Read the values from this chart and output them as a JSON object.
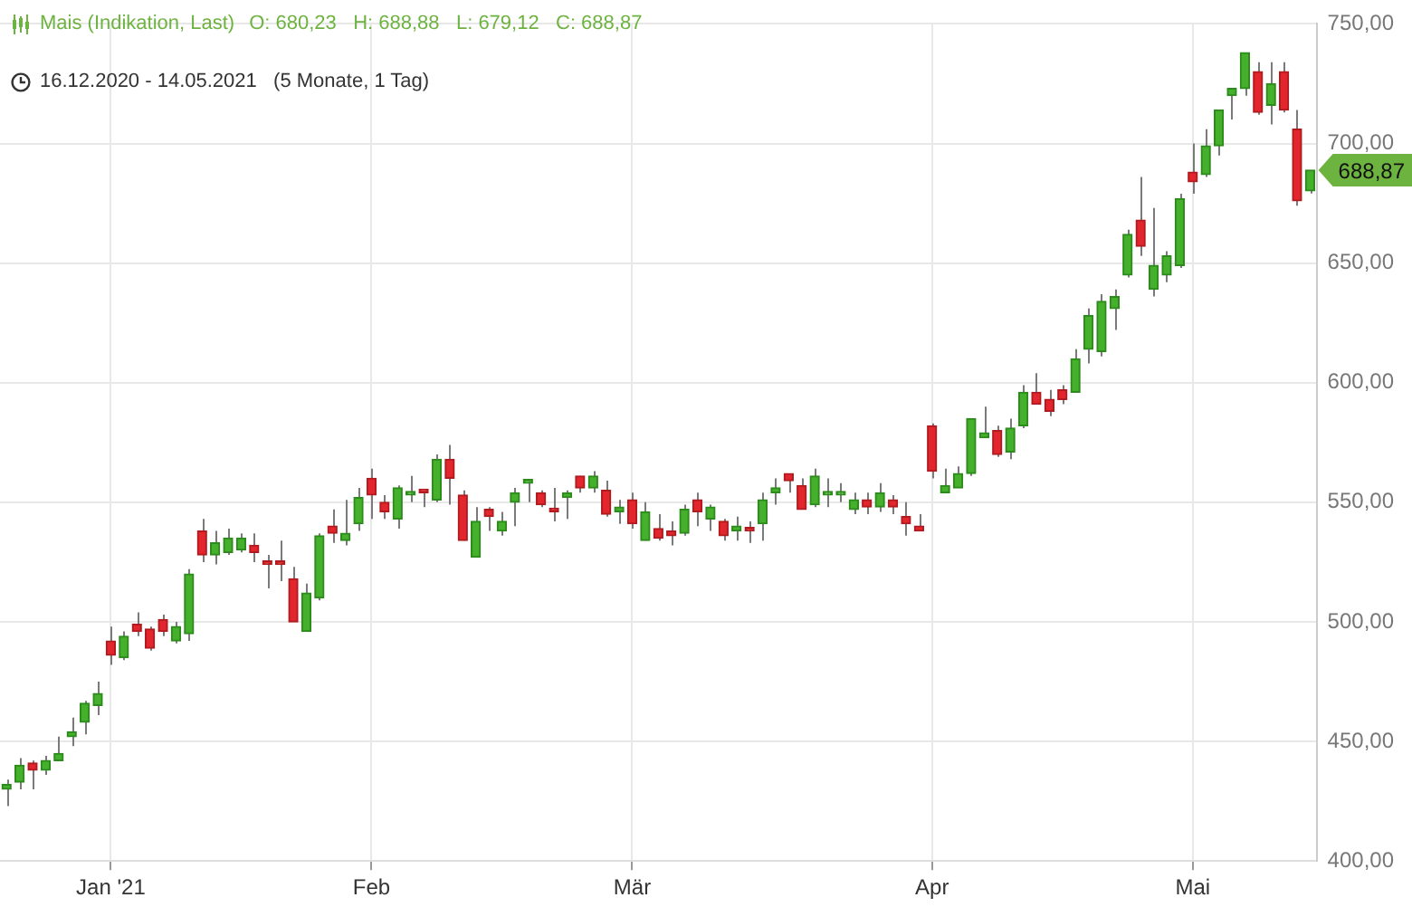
{
  "chart_data": {
    "type": "candlestick",
    "title": "Mais (Indikation, Last)",
    "subtitle": "16.12.2020 - 14.05.2021   (5 Monate, 1 Tag)",
    "annotations": [
      "O: 680,23   H: 688,88   L: 679,12   C: 688,87",
      "688,87"
    ],
    "categories": [
      null,
      null,
      null,
      null,
      null,
      null,
      null,
      null,
      "Jan '21",
      null,
      null,
      null,
      null,
      null,
      null,
      null,
      null,
      null,
      null,
      null,
      null,
      null,
      null,
      null,
      null,
      null,
      null,
      null,
      "Feb",
      null,
      null,
      null,
      null,
      null,
      null,
      null,
      null,
      null,
      null,
      null,
      null,
      null,
      null,
      null,
      null,
      null,
      null,
      null,
      "Mär",
      null,
      null,
      null,
      null,
      null,
      null,
      null,
      null,
      null,
      null,
      null,
      null,
      null,
      null,
      null,
      null,
      null,
      null,
      null,
      null,
      null,
      null,
      "Apr",
      null,
      null,
      null,
      null,
      null,
      null,
      null,
      null,
      null,
      null,
      null,
      null,
      null,
      null,
      null,
      null,
      null,
      null,
      null,
      "Mai",
      null,
      null,
      null,
      null,
      null,
      null,
      null,
      null,
      null
    ],
    "ohlc": [
      [
        430,
        434,
        423,
        432
      ],
      [
        433,
        443,
        430,
        440
      ],
      [
        441,
        442,
        430,
        438
      ],
      [
        438,
        444,
        436,
        442
      ],
      [
        442,
        452,
        442,
        445
      ],
      [
        452,
        460,
        448,
        454
      ],
      [
        458,
        467,
        453,
        466
      ],
      [
        465,
        475,
        461,
        470
      ],
      [
        492,
        498,
        482,
        486
      ],
      [
        485,
        496,
        484,
        494
      ],
      [
        499,
        504,
        494,
        496
      ],
      [
        497,
        498,
        488,
        489
      ],
      [
        501,
        503,
        494,
        496
      ],
      [
        492,
        500,
        491,
        498
      ],
      [
        495,
        522,
        492,
        520
      ],
      [
        538,
        543,
        525,
        528
      ],
      [
        528,
        538,
        524,
        533
      ],
      [
        529,
        539,
        528,
        535
      ],
      [
        530,
        537,
        529,
        535
      ],
      [
        532,
        537,
        525,
        529
      ],
      [
        525,
        528,
        514,
        524
      ],
      [
        525,
        534,
        517,
        524
      ],
      [
        518,
        523,
        500,
        500
      ],
      [
        496,
        516,
        496,
        512
      ],
      [
        510,
        537,
        509,
        536
      ],
      [
        540,
        547,
        533,
        537
      ],
      [
        534,
        551,
        532,
        537
      ],
      [
        541,
        556,
        538,
        552
      ],
      [
        560,
        564,
        543,
        553
      ],
      [
        550,
        553,
        543,
        546
      ],
      [
        543,
        557,
        539,
        556
      ],
      [
        553,
        561,
        550,
        554
      ],
      [
        554.5,
        555,
        548,
        554
      ],
      [
        551,
        570,
        550,
        568
      ],
      [
        568,
        574,
        549,
        560
      ],
      [
        553,
        555,
        534,
        534
      ],
      [
        527,
        548,
        527,
        542
      ],
      [
        547,
        548,
        538,
        544
      ],
      [
        538,
        546,
        536,
        542
      ],
      [
        550,
        556,
        540,
        554
      ],
      [
        558,
        559,
        550,
        559
      ],
      [
        554,
        555,
        548,
        549
      ],
      [
        547,
        556,
        542,
        546
      ],
      [
        552,
        555,
        543,
        554
      ],
      [
        561,
        561,
        554,
        556
      ],
      [
        556,
        563,
        554,
        561
      ],
      [
        555,
        559,
        544,
        545
      ],
      [
        546,
        551,
        541,
        548
      ],
      [
        551,
        554,
        539,
        541
      ],
      [
        534,
        550,
        534,
        546
      ],
      [
        539,
        545,
        534,
        535
      ],
      [
        538,
        542,
        532,
        536
      ],
      [
        537,
        549,
        536,
        547
      ],
      [
        551,
        554,
        540,
        546
      ],
      [
        543,
        549,
        538,
        548
      ],
      [
        542,
        543,
        534,
        536
      ],
      [
        538,
        544,
        534,
        540
      ],
      [
        539,
        542,
        533,
        538
      ],
      [
        541,
        554,
        534,
        551
      ],
      [
        554,
        560,
        549,
        556
      ],
      [
        562,
        562,
        554,
        559
      ],
      [
        557,
        560,
        547,
        547
      ],
      [
        549,
        564,
        548,
        561
      ],
      [
        553,
        560,
        548,
        554
      ],
      [
        553,
        558,
        550,
        554
      ],
      [
        547,
        554,
        545,
        551
      ],
      [
        551,
        554,
        545,
        548
      ],
      [
        548,
        558,
        546,
        554
      ],
      [
        551,
        553,
        545,
        548
      ],
      [
        544,
        550,
        536,
        541
      ],
      [
        540,
        545,
        538,
        538
      ],
      [
        582,
        583,
        560,
        563
      ],
      [
        554,
        564,
        554,
        557
      ],
      [
        556,
        565,
        556,
        562
      ],
      [
        562,
        585,
        561,
        585
      ],
      [
        577,
        590,
        577,
        579
      ],
      [
        580,
        582,
        569,
        570
      ],
      [
        571,
        585,
        568,
        581
      ],
      [
        582,
        599,
        581,
        596
      ],
      [
        596,
        604,
        591,
        591
      ],
      [
        593,
        597,
        586,
        588
      ],
      [
        597,
        599,
        591,
        593
      ],
      [
        596,
        614,
        596,
        610
      ],
      [
        614,
        631,
        608,
        628
      ],
      [
        613,
        637,
        611,
        634
      ],
      [
        631,
        639,
        622,
        636
      ],
      [
        645,
        664,
        644,
        662
      ],
      [
        668,
        686,
        653,
        657
      ],
      [
        639,
        673,
        636,
        649
      ],
      [
        645,
        655,
        642,
        653
      ],
      [
        649,
        679,
        648,
        677
      ],
      [
        688,
        700,
        679,
        684
      ],
      [
        687,
        706,
        686,
        699
      ],
      [
        699,
        714,
        695,
        714
      ],
      [
        720,
        723,
        710,
        723
      ],
      [
        723,
        738,
        720,
        738
      ],
      [
        730,
        734,
        712,
        713
      ],
      [
        716,
        734,
        708,
        725
      ],
      [
        730,
        734,
        713,
        714
      ],
      [
        706,
        714,
        674,
        676
      ],
      [
        680.23,
        688.88,
        679.12,
        688.87
      ]
    ],
    "ylim": [
      400,
      750
    ],
    "yticks": [
      {
        "value": 400,
        "label": "400,00"
      },
      {
        "value": 450,
        "label": "450,00"
      },
      {
        "value": 500,
        "label": "500,00"
      },
      {
        "value": 550,
        "label": "550,00"
      },
      {
        "value": 600,
        "label": "600,00"
      },
      {
        "value": 650,
        "label": "650,00"
      },
      {
        "value": 700,
        "label": "700,00"
      },
      {
        "value": 750,
        "label": "750,00"
      }
    ],
    "grid": true
  }
}
